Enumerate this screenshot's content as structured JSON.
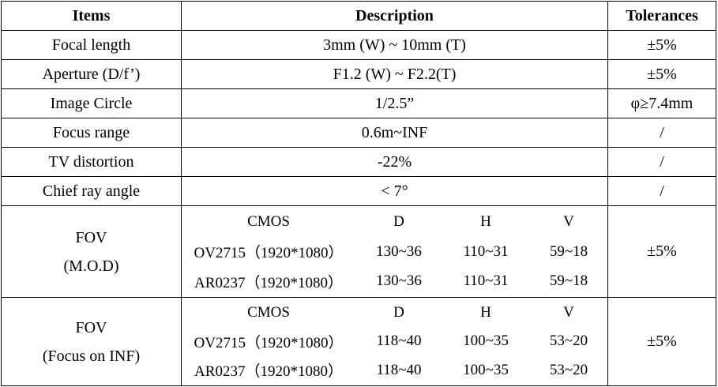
{
  "table": {
    "header": [
      "Items",
      "Description",
      "Tolerances"
    ],
    "rows": [
      [
        "Focal length",
        "3mm (W) ~ 10mm (T)",
        "±5%"
      ],
      [
        "Aperture (D/f’)",
        "F1.2 (W) ~ F2.2(T)",
        "±5%"
      ],
      [
        "Image Circle",
        "1/2.5”",
        "φ≥7.4mm"
      ],
      [
        "Focus range",
        "0.6m~INF",
        "/"
      ],
      [
        "TV distortion",
        "-22%",
        "/"
      ],
      [
        "Chief ray angle",
        "< 7°",
        "/"
      ]
    ],
    "fov": [
      {
        "item": [
          "FOV",
          "(M.O.D)"
        ],
        "columns": [
          "CMOS",
          "D",
          "H",
          "V"
        ],
        "rows": [
          [
            "OV2715（1920*1080）",
            "130~36",
            "110~31",
            "59~18"
          ],
          [
            "AR0237（1920*1080）",
            "130~36",
            "110~31",
            "59~18"
          ]
        ],
        "tolerance": "±5%"
      },
      {
        "item": [
          "FOV",
          "(Focus on INF)"
        ],
        "columns": [
          "CMOS",
          "D",
          "H",
          "V"
        ],
        "rows": [
          [
            "OV2715（1920*1080）",
            "118~40",
            "100~35",
            "53~20"
          ],
          [
            "AR0237（1920*1080）",
            "118~40",
            "100~35",
            "53~20"
          ]
        ],
        "tolerance": "±5%"
      }
    ]
  }
}
